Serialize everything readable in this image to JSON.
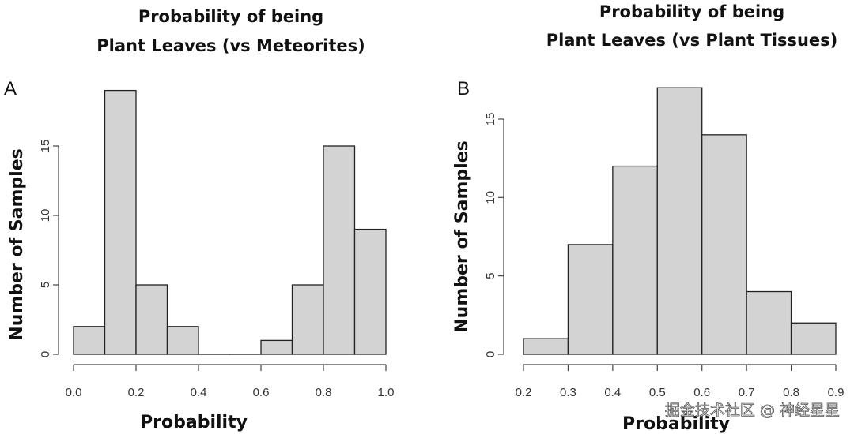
{
  "chart_data": [
    {
      "type": "bar",
      "panel_label": "A",
      "title": [
        "Probability of being",
        "Plant Leaves (vs Meteorites)"
      ],
      "xlabel": "Probability",
      "ylabel": "Number of Samples",
      "bin_edges": [
        0.0,
        0.1,
        0.2,
        0.3,
        0.4,
        0.5,
        0.6,
        0.7,
        0.8,
        0.9,
        1.0
      ],
      "values": [
        2,
        19,
        5,
        2,
        0,
        0,
        1,
        5,
        15,
        9
      ],
      "xlim": [
        0.0,
        1.0
      ],
      "ylim": [
        0,
        19
      ],
      "xticks": [
        "0.0",
        "0.2",
        "0.4",
        "0.6",
        "0.8",
        "1.0"
      ],
      "yticks": [
        "0",
        "5",
        "10",
        "15"
      ],
      "bar_color": "#d3d3d3",
      "grid": false
    },
    {
      "type": "bar",
      "panel_label": "B",
      "title": [
        "Probability of being",
        "Plant Leaves (vs Plant Tissues)"
      ],
      "xlabel": "Probability",
      "ylabel": "Number of Samples",
      "bin_edges": [
        0.2,
        0.3,
        0.4,
        0.5,
        0.6,
        0.7,
        0.8,
        0.9
      ],
      "values": [
        1,
        7,
        12,
        17,
        14,
        4,
        2
      ],
      "xlim": [
        0.2,
        0.9
      ],
      "ylim": [
        0,
        17
      ],
      "xticks": [
        "0.2",
        "0.3",
        "0.4",
        "0.5",
        "0.6",
        "0.7",
        "0.8",
        "0.9"
      ],
      "yticks": [
        "0",
        "5",
        "10",
        "15"
      ],
      "bar_color": "#d3d3d3",
      "grid": false
    }
  ],
  "watermark": "掘金技术社区 @ 神经星星"
}
